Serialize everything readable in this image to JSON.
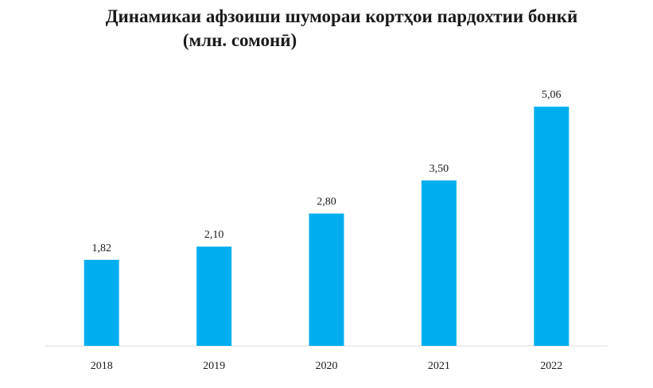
{
  "chart_data": {
    "type": "bar",
    "title_line1": "Динамикаи афзоиши шумораи кортҳои пардохтии бонкӣ",
    "title_line2": "(млн. сомонӣ)",
    "categories": [
      "2018",
      "2019",
      "2020",
      "2021",
      "2022"
    ],
    "values": [
      1.82,
      2.1,
      2.8,
      3.5,
      5.06
    ],
    "value_labels": [
      "1,82",
      "2,10",
      "2,80",
      "3,50",
      "5,06"
    ],
    "ylim": [
      0,
      5.4
    ],
    "grid": false,
    "legend": "none",
    "bar_color": "#00AEEF",
    "axis_color": "#d9d9d9"
  }
}
